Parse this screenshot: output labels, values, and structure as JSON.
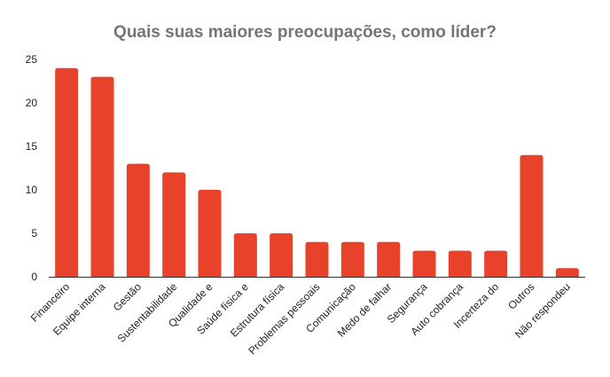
{
  "chart_data": {
    "type": "bar",
    "title": "Quais suas maiores preocupações, como líder?",
    "xlabel": "",
    "ylabel": "",
    "categories": [
      "Financeiro",
      "Equipe interna",
      "Gestão",
      "Sustentabilidade",
      "Qualidade e",
      "Saúde física e",
      "Estrutura física",
      "Problemas pessoais",
      "Comunicação",
      "Medo de falhar",
      "Segurança",
      "Auto cobrança",
      "Incerteza do",
      "Outros",
      "Não respondeu"
    ],
    "values": [
      24,
      23,
      13,
      12,
      10,
      5,
      5,
      4,
      4,
      4,
      3,
      3,
      3,
      14,
      1
    ],
    "ylim": [
      0,
      25
    ],
    "yticks": [
      0,
      5,
      10,
      15,
      20,
      25
    ],
    "grid": false,
    "legend": "none",
    "bar_color": "#e8432a"
  }
}
